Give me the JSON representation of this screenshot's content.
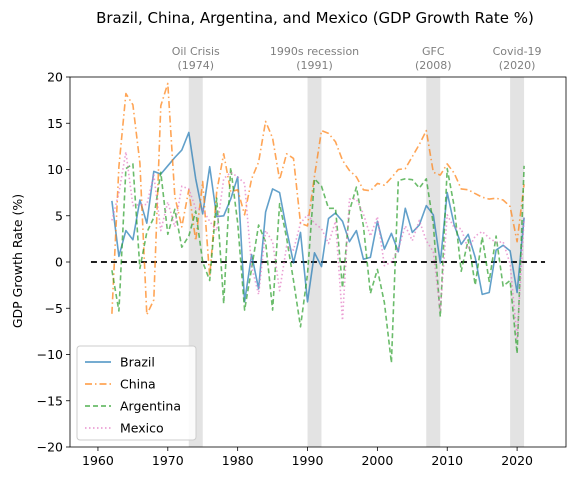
{
  "chart_data": {
    "type": "line",
    "title": "Brazil, China, Argentina, and Mexico (GDP Growth Rate %)",
    "xlabel": "",
    "ylabel": "GDP Growth Rate (%)",
    "xlim": [
      1956,
      2027
    ],
    "ylim": [
      -20,
      20
    ],
    "xticks": [
      1960,
      1970,
      1980,
      1990,
      2000,
      2010,
      2020
    ],
    "yticks": [
      -20,
      -15,
      -10,
      -5,
      0,
      5,
      10,
      15,
      20
    ],
    "grid": false,
    "legend_position": "lower-left",
    "reference_line": {
      "y": 0,
      "x_range": [
        1959,
        2024
      ],
      "style": "dashed",
      "color": "#000000"
    },
    "annotations": [
      {
        "label": "Oil Crisis",
        "year": "(1974)",
        "x_range": [
          1973,
          1975
        ]
      },
      {
        "label": "1990s recession",
        "year": "(1991)",
        "x_range": [
          1990,
          1992
        ]
      },
      {
        "label": "GFC",
        "year": "(2008)",
        "x_range": [
          2007,
          2009
        ]
      },
      {
        "label": "Covid-19",
        "year": "(2020)",
        "x_range": [
          2019,
          2021
        ]
      }
    ],
    "colors": {
      "shade": "#d9d9d9",
      "annotation_text": "#808080"
    },
    "series": [
      {
        "name": "Brazil",
        "color": "#1f77b4",
        "dash": "solid",
        "x": [
          1962,
          1963,
          1964,
          1965,
          1966,
          1967,
          1968,
          1969,
          1970,
          1971,
          1972,
          1973,
          1974,
          1975,
          1976,
          1977,
          1978,
          1979,
          1980,
          1981,
          1982,
          1983,
          1984,
          1985,
          1986,
          1987,
          1988,
          1989,
          1990,
          1991,
          1992,
          1993,
          1994,
          1995,
          1996,
          1997,
          1998,
          1999,
          2000,
          2001,
          2002,
          2003,
          2004,
          2005,
          2006,
          2007,
          2008,
          2009,
          2010,
          2011,
          2012,
          2013,
          2014,
          2015,
          2016,
          2017,
          2018,
          2019,
          2020,
          2021
        ],
        "values": [
          6.6,
          0.6,
          3.4,
          2.4,
          6.7,
          4.2,
          9.8,
          9.5,
          10.4,
          11.3,
          12.1,
          14.0,
          9.0,
          5.2,
          10.3,
          4.9,
          5.0,
          6.8,
          9.2,
          -4.3,
          0.8,
          -2.9,
          5.4,
          7.9,
          7.5,
          3.5,
          -0.1,
          3.2,
          -4.3,
          1.0,
          -0.5,
          4.7,
          5.3,
          4.4,
          2.2,
          3.4,
          0.3,
          0.5,
          4.4,
          1.4,
          3.1,
          1.1,
          5.8,
          3.2,
          4.0,
          6.1,
          5.1,
          -0.1,
          7.5,
          4.0,
          1.9,
          3.0,
          0.5,
          -3.5,
          -3.3,
          1.3,
          1.8,
          1.2,
          -3.3,
          4.8
        ]
      },
      {
        "name": "China",
        "color": "#ff7f0e",
        "dash": "dashdot",
        "x": [
          1962,
          1963,
          1964,
          1965,
          1966,
          1967,
          1968,
          1969,
          1970,
          1971,
          1972,
          1973,
          1974,
          1975,
          1976,
          1977,
          1978,
          1979,
          1980,
          1981,
          1982,
          1983,
          1984,
          1985,
          1986,
          1987,
          1988,
          1989,
          1990,
          1991,
          1992,
          1993,
          1994,
          1995,
          1996,
          1997,
          1998,
          1999,
          2000,
          2001,
          2002,
          2003,
          2004,
          2005,
          2006,
          2007,
          2008,
          2009,
          2010,
          2011,
          2012,
          2013,
          2014,
          2015,
          2016,
          2017,
          2018,
          2019,
          2020,
          2021
        ],
        "values": [
          -5.6,
          10.3,
          18.2,
          17.0,
          10.7,
          -5.7,
          -4.1,
          16.9,
          19.3,
          7.1,
          3.8,
          7.8,
          2.3,
          8.7,
          -1.6,
          7.6,
          11.7,
          7.6,
          7.8,
          5.1,
          9.0,
          10.8,
          15.2,
          13.4,
          8.9,
          11.7,
          11.2,
          4.2,
          3.9,
          9.3,
          14.2,
          13.9,
          13.0,
          11.0,
          9.9,
          9.2,
          7.8,
          7.7,
          8.5,
          8.3,
          9.1,
          10.0,
          10.1,
          11.4,
          12.7,
          14.2,
          9.7,
          9.4,
          10.6,
          9.6,
          7.9,
          7.8,
          7.4,
          7.0,
          6.8,
          6.9,
          6.7,
          6.0,
          2.2,
          8.4
        ]
      },
      {
        "name": "Argentina",
        "color": "#2ca02c",
        "dash": "dashed",
        "x": [
          1962,
          1963,
          1964,
          1965,
          1966,
          1967,
          1968,
          1969,
          1970,
          1971,
          1972,
          1973,
          1974,
          1975,
          1976,
          1977,
          1978,
          1979,
          1980,
          1981,
          1982,
          1983,
          1984,
          1985,
          1986,
          1987,
          1988,
          1989,
          1990,
          1991,
          1992,
          1993,
          1994,
          1995,
          1996,
          1997,
          1998,
          1999,
          2000,
          2001,
          2002,
          2003,
          2004,
          2005,
          2006,
          2007,
          2008,
          2009,
          2010,
          2011,
          2012,
          2013,
          2014,
          2015,
          2016,
          2017,
          2018,
          2019,
          2020,
          2021
        ],
        "values": [
          -0.9,
          -5.3,
          10.1,
          10.6,
          -0.7,
          3.2,
          4.8,
          9.7,
          3.0,
          5.7,
          1.6,
          2.8,
          5.5,
          0.0,
          -2.0,
          6.9,
          -4.5,
          10.2,
          4.2,
          -5.2,
          -0.7,
          4.0,
          2.2,
          -5.2,
          6.3,
          2.6,
          -2.0,
          -7.0,
          -1.3,
          9.0,
          8.2,
          5.8,
          5.8,
          -2.8,
          5.5,
          8.1,
          3.9,
          -3.4,
          -0.8,
          -4.4,
          -10.9,
          8.8,
          9.0,
          8.9,
          8.0,
          9.0,
          4.1,
          -5.9,
          10.1,
          6.0,
          -1.0,
          2.4,
          -2.5,
          2.7,
          -2.1,
          2.8,
          -2.6,
          -2.0,
          -9.9,
          10.4
        ]
      },
      {
        "name": "Mexico",
        "color": "#e377c2",
        "dash": "dotted",
        "x": [
          1962,
          1963,
          1964,
          1965,
          1966,
          1967,
          1968,
          1969,
          1970,
          1971,
          1972,
          1973,
          1974,
          1975,
          1976,
          1977,
          1978,
          1979,
          1980,
          1981,
          1982,
          1983,
          1984,
          1985,
          1986,
          1987,
          1988,
          1989,
          1990,
          1991,
          1992,
          1993,
          1994,
          1995,
          1996,
          1997,
          1998,
          1999,
          2000,
          2001,
          2002,
          2003,
          2004,
          2005,
          2006,
          2007,
          2008,
          2009,
          2010,
          2011,
          2012,
          2013,
          2014,
          2015,
          2016,
          2017,
          2018,
          2019,
          2020,
          2021
        ],
        "values": [
          4.5,
          7.5,
          11.9,
          6.1,
          6.2,
          6.2,
          9.4,
          3.4,
          6.5,
          3.8,
          8.2,
          7.9,
          5.8,
          5.7,
          4.4,
          3.4,
          9.0,
          9.7,
          9.2,
          8.5,
          -0.5,
          -3.5,
          3.4,
          2.2,
          -3.1,
          1.7,
          1.3,
          4.2,
          5.1,
          4.2,
          3.6,
          2.0,
          4.4,
          -6.3,
          6.8,
          6.8,
          5.2,
          2.8,
          4.9,
          -0.4,
          0.0,
          1.4,
          3.9,
          2.3,
          4.5,
          2.3,
          1.1,
          -5.3,
          5.1,
          3.7,
          3.6,
          1.4,
          2.8,
          3.3,
          2.6,
          2.1,
          2.2,
          -0.2,
          -8.2,
          4.7
        ]
      }
    ]
  }
}
